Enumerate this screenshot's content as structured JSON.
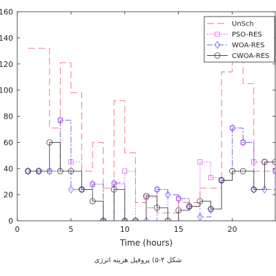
{
  "chart_data": {
    "type": "line",
    "title": "",
    "xlabel": "Time (hours)",
    "ylabel": "",
    "xlim": [
      0,
      24
    ],
    "ylim": [
      0,
      160
    ],
    "xticks": [
      0,
      5,
      10,
      15,
      20
    ],
    "yticks": [
      0,
      20,
      40,
      60,
      80,
      100,
      120,
      140,
      160
    ],
    "grid": false,
    "legend_position": "top-right",
    "x": [
      1,
      2,
      3,
      4,
      5,
      6,
      7,
      8,
      9,
      10,
      11,
      12,
      13,
      14,
      15,
      16,
      17,
      18,
      19,
      20,
      21,
      22,
      23,
      24
    ],
    "series": [
      {
        "name": "UnSch",
        "color": "#e8707a",
        "dash": "10,5",
        "marker": "none",
        "values": [
          132,
          132,
          71,
          121,
          98,
          38,
          60,
          25,
          92,
          52,
          14,
          10,
          6,
          6,
          14,
          14,
          25,
          25,
          114,
          126,
          105,
          38,
          38,
          38
        ]
      },
      {
        "name": "PSO-RES",
        "color": "#e060e8",
        "dash": "2,2",
        "marker": "square",
        "values": [
          38,
          38,
          38,
          77,
          45,
          24,
          28,
          0,
          28,
          38,
          0,
          18,
          24,
          0,
          17,
          11,
          45,
          33,
          31,
          71,
          60,
          45,
          45,
          38
        ]
      },
      {
        "name": "WOA-RES",
        "color": "#6a60e8",
        "dash": "8,3,2,3",
        "marker": "diamond",
        "values": [
          38,
          38,
          38,
          77,
          24,
          24,
          28,
          0,
          29,
          0,
          0,
          0,
          24,
          20,
          17,
          11,
          3,
          9,
          31,
          71,
          60,
          24,
          24,
          38
        ]
      },
      {
        "name": "CWOA-RES",
        "color": "#404040",
        "dash": "",
        "marker": "circle",
        "values": [
          38,
          38,
          60,
          38,
          38,
          24,
          15,
          0,
          24,
          0,
          0,
          19,
          10,
          0,
          8,
          11,
          15,
          9,
          31,
          38,
          38,
          24,
          45,
          45
        ]
      }
    ]
  },
  "caption": "شکل ۴-۵) پروفیل هزینه انرژی"
}
